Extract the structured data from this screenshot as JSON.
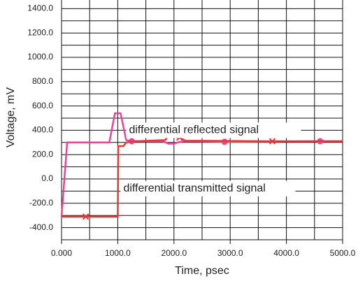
{
  "chart_data": {
    "type": "line",
    "xlabel": "Time, psec",
    "ylabel": "Voltage, mV",
    "annotations": [
      {
        "text": "differential reflected signal",
        "x": 1200,
        "y": 400
      },
      {
        "text": "differential transmitted signal",
        "x": 1100,
        "y": -80
      }
    ],
    "xlim": [
      0,
      5000
    ],
    "ylim": [
      -500,
      1500
    ],
    "xticks": [
      {
        "value": 0,
        "label": "0.000"
      },
      {
        "value": 1000,
        "label": "1000.0"
      },
      {
        "value": 2000,
        "label": "2000.0"
      },
      {
        "value": 3000,
        "label": "3000.0"
      },
      {
        "value": 4000,
        "label": "4000.0"
      },
      {
        "value": 5000,
        "label": "5000.0"
      }
    ],
    "yticks": [
      {
        "value": -400,
        "label": "-400.0"
      },
      {
        "value": -200,
        "label": "-200.0"
      },
      {
        "value": 0,
        "label": "0.0"
      },
      {
        "value": 200,
        "label": "200.0"
      },
      {
        "value": 400,
        "label": "400.0"
      },
      {
        "value": 600,
        "label": "600.0"
      },
      {
        "value": 800,
        "label": "800.0"
      },
      {
        "value": 1000,
        "label": "1000.0"
      },
      {
        "value": 1200,
        "label": "1200.0"
      },
      {
        "value": 1400,
        "label": "1400.0"
      }
    ],
    "x_minor_grid": [
      500,
      1500,
      2500,
      3500,
      4500
    ],
    "y_minor_grid": [
      -500,
      -300,
      -100,
      100,
      300,
      500,
      700,
      900,
      1100,
      1300,
      1500
    ],
    "grid": true,
    "series": [
      {
        "name": "differential reflected signal",
        "color": "#e8449a",
        "marker": "o",
        "x": [
          0,
          100,
          850,
          950,
          1050,
          1150,
          1250,
          1800,
          1900,
          2000,
          2100,
          2200,
          2900,
          4600,
          5000
        ],
        "values": [
          -310,
          300,
          300,
          540,
          540,
          320,
          310,
          310,
          290,
          290,
          305,
          310,
          305,
          310,
          310
        ],
        "marker_points": [
          6,
          12,
          13
        ]
      },
      {
        "name": "differential transmitted signal",
        "color": "#e23a3a",
        "marker": "x",
        "x": [
          0,
          430,
          1000,
          1010,
          1100,
          1150,
          1300,
          1850,
          1900,
          2000,
          2050,
          2100,
          2200,
          3750,
          5000
        ],
        "values": [
          -310,
          -310,
          -310,
          270,
          270,
          300,
          310,
          320,
          370,
          370,
          340,
          340,
          315,
          310,
          310
        ],
        "marker_points": [
          1,
          11,
          13
        ]
      }
    ]
  }
}
